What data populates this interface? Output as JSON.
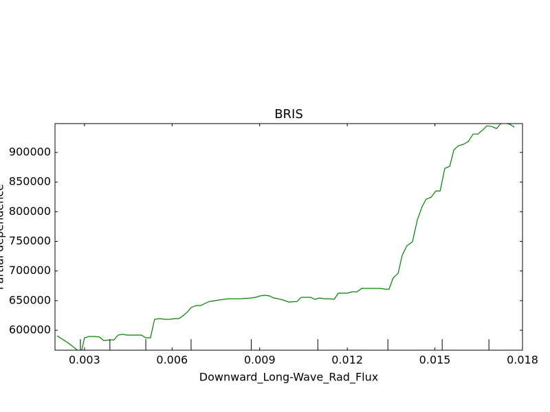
{
  "chart_data": {
    "type": "line",
    "title": "BRIS",
    "xlabel": "Downward_Long-Wave_Rad_Flux",
    "ylabel": "Partial dependence",
    "xlim": [
      0.00199,
      0.018
    ],
    "ylim": [
      566400,
      948600
    ],
    "xticks": [
      0.003,
      0.006,
      0.009,
      0.012,
      0.015,
      0.018
    ],
    "yticks": [
      600000,
      650000,
      700000,
      750000,
      800000,
      850000,
      900000
    ],
    "deciles": [
      0.00286,
      0.00387,
      0.0051,
      0.00665,
      0.00871,
      0.01099,
      0.01339,
      0.01525,
      0.01685
    ],
    "series": [
      {
        "name": "BRIS",
        "color": "#008000",
        "x": [
          0.00206,
          0.00246,
          0.00276,
          0.00288,
          0.003,
          0.00316,
          0.00335,
          0.00352,
          0.00366,
          0.00387,
          0.00401,
          0.00415,
          0.0043,
          0.00446,
          0.00481,
          0.00495,
          0.0051,
          0.00526,
          0.0054,
          0.00557,
          0.00576,
          0.00592,
          0.00609,
          0.00623,
          0.00637,
          0.00651,
          0.00665,
          0.00682,
          0.00698,
          0.00712,
          0.00729,
          0.00745,
          0.00759,
          0.00776,
          0.00792,
          0.00811,
          0.00835,
          0.0087,
          0.00886,
          0.00901,
          0.00917,
          0.00934,
          0.00948,
          0.00964,
          0.00981,
          0.01,
          0.01028,
          0.01042,
          0.01058,
          0.01075,
          0.01089,
          0.01105,
          0.01122,
          0.01141,
          0.01155,
          0.01169,
          0.01183,
          0.012,
          0.01216,
          0.01233,
          0.01249,
          0.01282,
          0.01313,
          0.01329,
          0.01343,
          0.01357,
          0.01374,
          0.01388,
          0.01404,
          0.01423,
          0.0144,
          0.01456,
          0.0147,
          0.01487,
          0.01503,
          0.01518,
          0.01534,
          0.01551,
          0.01565,
          0.01581,
          0.01598,
          0.01614,
          0.01631,
          0.01647,
          0.01664,
          0.01678,
          0.01694,
          0.01711,
          0.01725,
          0.01741,
          0.01758,
          0.01772
        ],
        "values": [
          590700,
          578000,
          566400,
          560600,
          587300,
          589600,
          589600,
          588400,
          582600,
          583800,
          583800,
          591900,
          593100,
          591900,
          591900,
          591900,
          587300,
          587300,
          618500,
          619700,
          618500,
          618500,
          619700,
          619700,
          624300,
          630100,
          638200,
          641700,
          641700,
          645100,
          648600,
          649800,
          650900,
          652100,
          653200,
          653200,
          653200,
          654400,
          655600,
          657900,
          659000,
          657900,
          654400,
          653200,
          650900,
          647500,
          648600,
          655600,
          655600,
          655600,
          652100,
          654400,
          653200,
          653200,
          652100,
          662500,
          662500,
          662500,
          664800,
          664800,
          670600,
          670600,
          670600,
          669400,
          669400,
          688000,
          696100,
          726200,
          742400,
          749300,
          786300,
          808300,
          821100,
          824500,
          835000,
          835000,
          873100,
          876600,
          904400,
          911300,
          913700,
          918300,
          931000,
          931000,
          938000,
          944900,
          943700,
          940300,
          948400,
          949500,
          947200,
          942600
        ]
      }
    ]
  }
}
